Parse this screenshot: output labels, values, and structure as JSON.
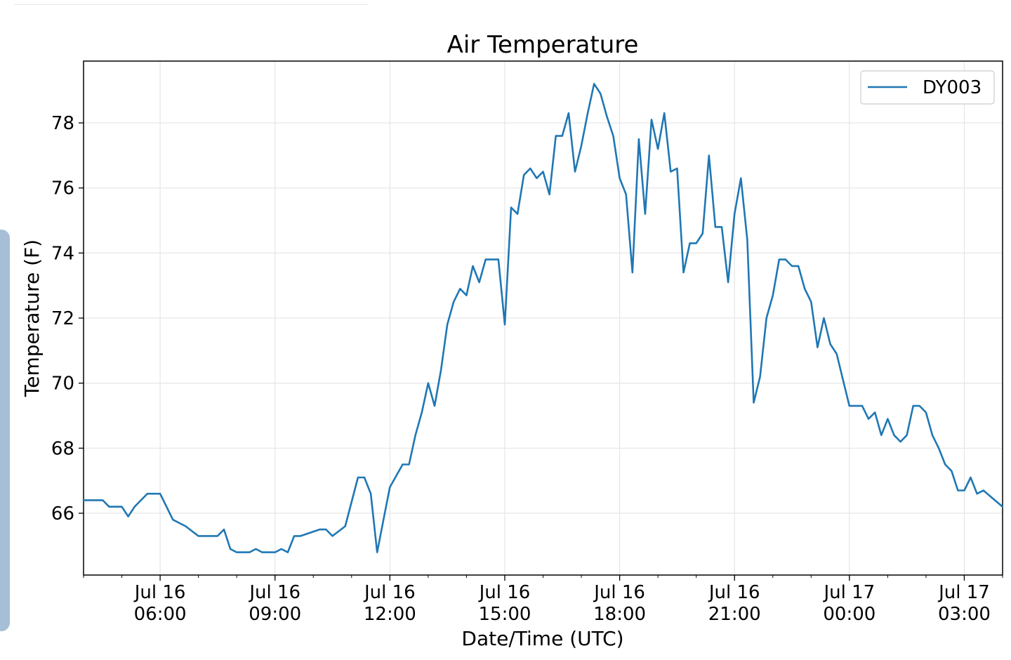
{
  "chart_data": {
    "type": "line",
    "title": "Air Temperature",
    "xlabel": "Date/Time (UTC)",
    "ylabel": "Temperature (F)",
    "grid": true,
    "legend_position": "top-right",
    "x_unit": "UTC",
    "xlim": [
      "2021-07-16 04:00",
      "2021-07-17 04:00"
    ],
    "ylim": [
      64.1,
      79.9
    ],
    "xticks": [
      {
        "value": "2021-07-16 06:00",
        "label": [
          "Jul 16",
          "06:00"
        ]
      },
      {
        "value": "2021-07-16 09:00",
        "label": [
          "Jul 16",
          "09:00"
        ]
      },
      {
        "value": "2021-07-16 12:00",
        "label": [
          "Jul 16",
          "12:00"
        ]
      },
      {
        "value": "2021-07-16 15:00",
        "label": [
          "Jul 16",
          "15:00"
        ]
      },
      {
        "value": "2021-07-16 18:00",
        "label": [
          "Jul 16",
          "18:00"
        ]
      },
      {
        "value": "2021-07-16 21:00",
        "label": [
          "Jul 16",
          "21:00"
        ]
      },
      {
        "value": "2021-07-17 00:00",
        "label": [
          "Jul 17",
          "00:00"
        ]
      },
      {
        "value": "2021-07-17 03:00",
        "label": [
          "Jul 17",
          "03:00"
        ]
      }
    ],
    "yticks": [
      66,
      68,
      70,
      72,
      74,
      76,
      78
    ],
    "series": [
      {
        "name": "DY003",
        "color": "#1f77b4",
        "x": [
          "2021-07-16 04:00",
          "2021-07-16 04:30",
          "2021-07-16 04:40",
          "2021-07-16 05:00",
          "2021-07-16 05:10",
          "2021-07-16 05:20",
          "2021-07-16 05:30",
          "2021-07-16 05:40",
          "2021-07-16 05:50",
          "2021-07-16 06:00",
          "2021-07-16 06:20",
          "2021-07-16 06:40",
          "2021-07-16 07:00",
          "2021-07-16 07:30",
          "2021-07-16 07:40",
          "2021-07-16 07:50",
          "2021-07-16 08:00",
          "2021-07-16 08:20",
          "2021-07-16 08:30",
          "2021-07-16 08:40",
          "2021-07-16 09:00",
          "2021-07-16 09:10",
          "2021-07-16 09:20",
          "2021-07-16 09:30",
          "2021-07-16 09:40",
          "2021-07-16 10:10",
          "2021-07-16 10:20",
          "2021-07-16 10:30",
          "2021-07-16 10:50",
          "2021-07-16 11:10",
          "2021-07-16 11:20",
          "2021-07-16 11:30",
          "2021-07-16 11:40",
          "2021-07-16 11:50",
          "2021-07-16 12:00",
          "2021-07-16 12:20",
          "2021-07-16 12:30",
          "2021-07-16 12:40",
          "2021-07-16 12:50",
          "2021-07-16 13:00",
          "2021-07-16 13:10",
          "2021-07-16 13:20",
          "2021-07-16 13:30",
          "2021-07-16 13:40",
          "2021-07-16 13:50",
          "2021-07-16 14:00",
          "2021-07-16 14:10",
          "2021-07-16 14:20",
          "2021-07-16 14:30",
          "2021-07-16 14:50",
          "2021-07-16 15:00",
          "2021-07-16 15:10",
          "2021-07-16 15:20",
          "2021-07-16 15:30",
          "2021-07-16 15:40",
          "2021-07-16 15:50",
          "2021-07-16 16:00",
          "2021-07-16 16:10",
          "2021-07-16 16:20",
          "2021-07-16 16:30",
          "2021-07-16 16:40",
          "2021-07-16 16:50",
          "2021-07-16 17:00",
          "2021-07-16 17:10",
          "2021-07-16 17:20",
          "2021-07-16 17:30",
          "2021-07-16 17:40",
          "2021-07-16 17:50",
          "2021-07-16 18:00",
          "2021-07-16 18:10",
          "2021-07-16 18:20",
          "2021-07-16 18:30",
          "2021-07-16 18:40",
          "2021-07-16 18:50",
          "2021-07-16 19:00",
          "2021-07-16 19:10",
          "2021-07-16 19:20",
          "2021-07-16 19:30",
          "2021-07-16 19:40",
          "2021-07-16 19:50",
          "2021-07-16 20:00",
          "2021-07-16 20:10",
          "2021-07-16 20:20",
          "2021-07-16 20:30",
          "2021-07-16 20:40",
          "2021-07-16 20:50",
          "2021-07-16 21:00",
          "2021-07-16 21:10",
          "2021-07-16 21:20",
          "2021-07-16 21:30",
          "2021-07-16 21:40",
          "2021-07-16 21:50",
          "2021-07-16 22:00",
          "2021-07-16 22:10",
          "2021-07-16 22:20",
          "2021-07-16 22:30",
          "2021-07-16 22:40",
          "2021-07-16 22:50",
          "2021-07-16 23:00",
          "2021-07-16 23:10",
          "2021-07-16 23:20",
          "2021-07-16 23:30",
          "2021-07-16 23:40",
          "2021-07-16 23:50",
          "2021-07-17 00:00",
          "2021-07-17 00:20",
          "2021-07-17 00:30",
          "2021-07-17 00:40",
          "2021-07-17 00:50",
          "2021-07-17 01:00",
          "2021-07-17 01:10",
          "2021-07-17 01:20",
          "2021-07-17 01:30",
          "2021-07-17 01:40",
          "2021-07-17 01:50",
          "2021-07-17 02:00",
          "2021-07-17 02:10",
          "2021-07-17 02:20",
          "2021-07-17 02:30",
          "2021-07-17 02:40",
          "2021-07-17 02:50",
          "2021-07-17 03:00",
          "2021-07-17 03:10",
          "2021-07-17 03:20",
          "2021-07-17 03:30",
          "2021-07-17 04:00"
        ],
        "y": [
          66.4,
          66.4,
          66.2,
          66.2,
          65.9,
          66.2,
          66.4,
          66.6,
          66.6,
          66.6,
          65.8,
          65.6,
          65.3,
          65.3,
          65.5,
          64.9,
          64.8,
          64.8,
          64.9,
          64.8,
          64.8,
          64.9,
          64.8,
          65.3,
          65.3,
          65.5,
          65.5,
          65.3,
          65.6,
          67.1,
          67.1,
          66.6,
          64.8,
          65.8,
          66.8,
          67.5,
          67.5,
          68.4,
          69.1,
          70.0,
          69.3,
          70.4,
          71.8,
          72.5,
          72.9,
          72.7,
          73.6,
          73.1,
          73.8,
          73.8,
          71.8,
          75.4,
          75.2,
          76.4,
          76.6,
          76.3,
          76.5,
          75.8,
          77.6,
          77.6,
          78.3,
          76.5,
          77.3,
          78.3,
          79.2,
          78.9,
          78.2,
          77.6,
          76.3,
          75.8,
          73.4,
          77.5,
          75.2,
          78.1,
          77.2,
          78.3,
          76.5,
          76.6,
          73.4,
          74.3,
          74.3,
          74.6,
          77.0,
          74.8,
          74.8,
          73.1,
          75.2,
          76.3,
          74.4,
          69.4,
          70.2,
          72.0,
          72.7,
          73.8,
          73.8,
          73.6,
          73.6,
          72.9,
          72.5,
          71.1,
          72.0,
          71.2,
          70.9,
          70.1,
          69.3,
          69.3,
          68.9,
          69.1,
          68.4,
          68.9,
          68.4,
          68.2,
          68.4,
          69.3,
          69.3,
          69.1,
          68.4,
          68.0,
          67.5,
          67.3,
          66.7,
          66.7,
          67.1,
          66.6,
          66.7,
          66.2
        ]
      }
    ]
  }
}
